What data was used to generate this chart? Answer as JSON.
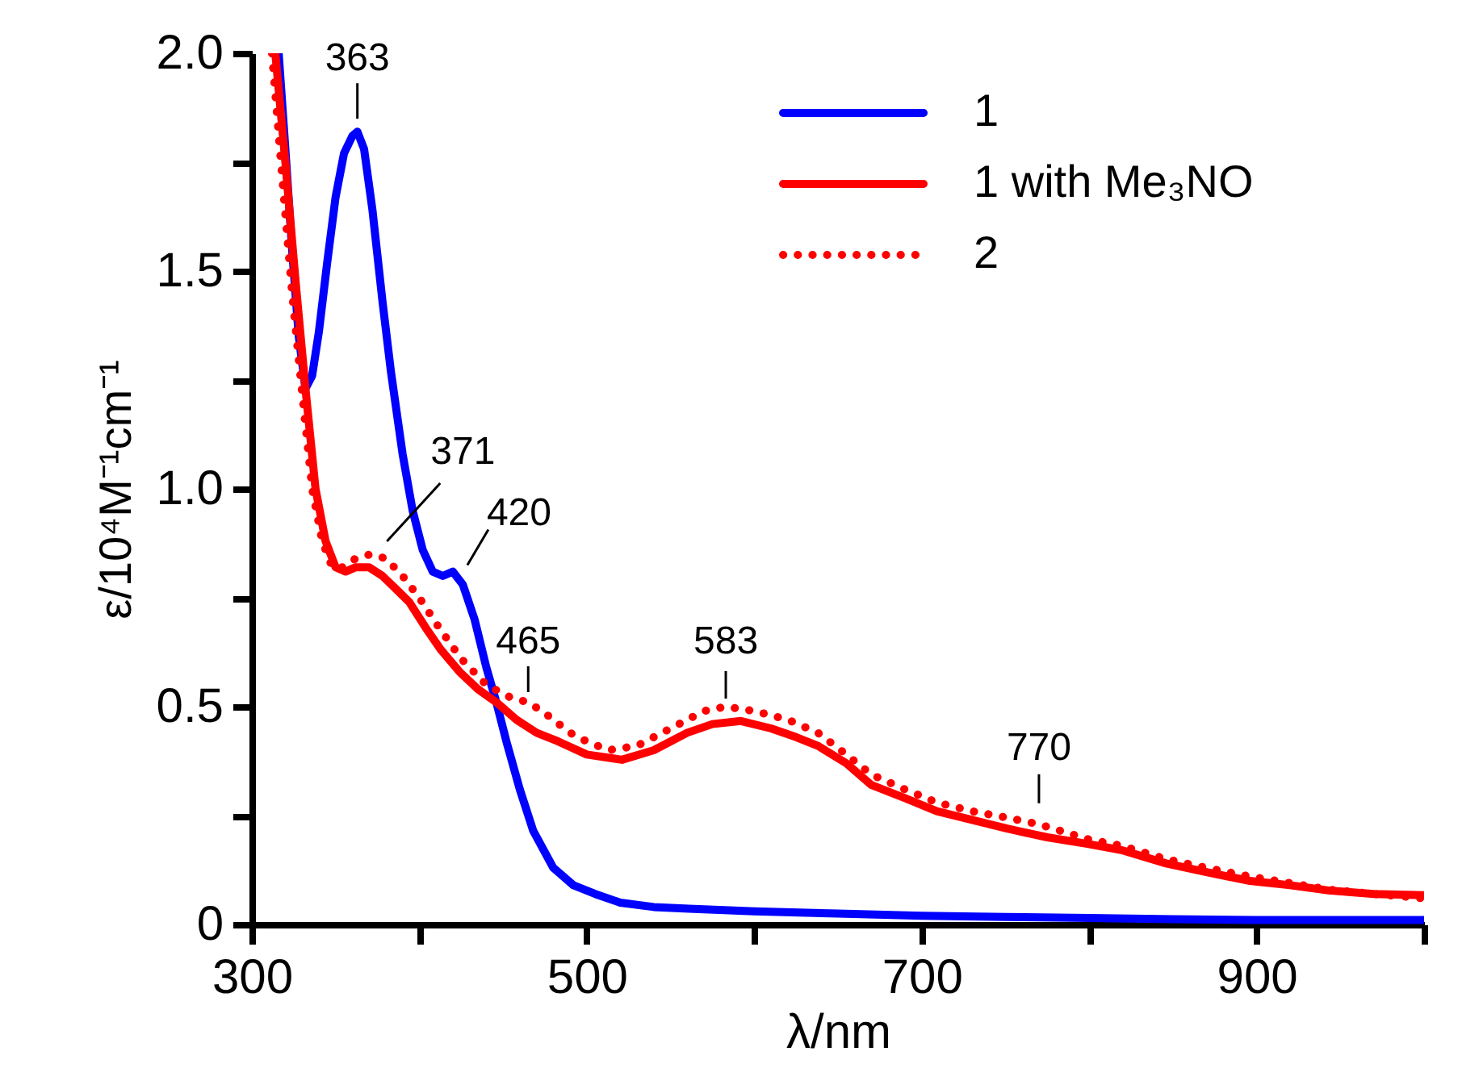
{
  "chart_data": {
    "type": "line",
    "xlabel": "λ/nm",
    "ylabel": "ε/10⁴M⁻¹cm⁻¹",
    "xlim": [
      300,
      1000
    ],
    "ylim": [
      0,
      2.0
    ],
    "xticks": [
      300,
      {
        "value": 400,
        "label": null
      },
      500,
      {
        "value": 600,
        "label": null
      },
      700,
      {
        "value": 800,
        "label": null
      },
      900,
      {
        "value": 1000,
        "label": null
      }
    ],
    "yticks": [
      0,
      {
        "value": 0.25,
        "label": null
      },
      0.5,
      {
        "value": 0.75,
        "label": null
      },
      {
        "value": 1,
        "label": "1.0"
      },
      {
        "value": 1.25,
        "label": null
      },
      1.5,
      {
        "value": 1.75,
        "label": null
      },
      {
        "value": 2,
        "label": "2.0"
      }
    ],
    "grid": false,
    "legend": "top right",
    "marker": "none",
    "series": [
      {
        "name": "1",
        "color": "#0000ff",
        "line_style": "solid",
        "x": [
          316,
          320,
          324,
          328,
          332,
          336,
          340,
          345,
          350,
          355,
          360,
          363,
          367,
          372,
          378,
          383,
          390,
          396,
          402,
          408,
          414,
          420,
          426,
          433,
          440,
          446,
          452,
          460,
          468,
          480,
          492,
          505,
          520,
          540,
          561,
          600,
          650,
          700,
          750,
          800,
          850,
          900,
          950,
          1000
        ],
        "values": [
          2.0,
          1.78,
          1.55,
          1.35,
          1.23,
          1.26,
          1.36,
          1.52,
          1.67,
          1.77,
          1.81,
          1.82,
          1.78,
          1.64,
          1.43,
          1.27,
          1.08,
          0.95,
          0.86,
          0.81,
          0.8,
          0.81,
          0.78,
          0.7,
          0.59,
          0.51,
          0.42,
          0.31,
          0.215,
          0.13,
          0.09,
          0.07,
          0.05,
          0.04,
          0.036,
          0.03,
          0.025,
          0.02,
          0.017,
          0.015,
          0.012,
          0.01,
          0.01,
          0.01
        ]
      },
      {
        "name": "1 with Me₃NO",
        "color": "#ff0000",
        "line_style": "solid",
        "x": [
          314,
          320,
          326,
          332,
          338,
          344,
          350,
          356,
          362,
          370,
          378,
          386,
          394,
          404,
          413,
          424,
          435,
          446,
          458,
          470,
          483,
          500,
          521,
          540,
          560,
          575,
          592,
          610,
          625,
          638,
          655,
          670,
          690,
          709,
          730,
          751,
          775,
          799,
          820,
          846,
          870,
          896,
          920,
          943,
          970,
          1000
        ],
        "values": [
          2.0,
          1.75,
          1.48,
          1.23,
          1.0,
          0.88,
          0.82,
          0.81,
          0.82,
          0.82,
          0.8,
          0.77,
          0.74,
          0.68,
          0.63,
          0.58,
          0.54,
          0.51,
          0.47,
          0.44,
          0.42,
          0.39,
          0.378,
          0.4,
          0.44,
          0.46,
          0.467,
          0.45,
          0.43,
          0.41,
          0.37,
          0.32,
          0.29,
          0.26,
          0.24,
          0.22,
          0.2,
          0.185,
          0.17,
          0.14,
          0.12,
          0.1,
          0.09,
          0.078,
          0.07,
          0.067
        ]
      },
      {
        "name": "2",
        "color": "#ff0000",
        "line_style": "dotted",
        "x": [
          312,
          318,
          324,
          330,
          336,
          342,
          348,
          354,
          362,
          371,
          380,
          390,
          400,
          412,
          425,
          440,
          455,
          465,
          475,
          490,
          500,
          513,
          530,
          550,
          570,
          583,
          600,
          620,
          638,
          655,
          670,
          690,
          709,
          730,
          751,
          770,
          799,
          820,
          846,
          870,
          896,
          920,
          943,
          970,
          1000
        ],
        "values": [
          2.0,
          1.72,
          1.45,
          1.22,
          1.0,
          0.88,
          0.82,
          0.82,
          0.84,
          0.85,
          0.84,
          0.8,
          0.75,
          0.68,
          0.61,
          0.55,
          0.52,
          0.51,
          0.485,
          0.44,
          0.42,
          0.4,
          0.41,
          0.45,
          0.49,
          0.5,
          0.49,
          0.47,
          0.44,
          0.39,
          0.344,
          0.31,
          0.28,
          0.26,
          0.245,
          0.23,
          0.196,
          0.18,
          0.15,
          0.13,
          0.11,
          0.095,
          0.08,
          0.07,
          0.06
        ]
      }
    ],
    "annotations": [
      {
        "text": "363",
        "x": 363,
        "y": 1.82
      },
      {
        "text": "371",
        "x": 371,
        "y": 0.85
      },
      {
        "text": "420",
        "x": 420,
        "y": 0.81
      },
      {
        "text": "465",
        "x": 465,
        "y": 0.5
      },
      {
        "text": "583",
        "x": 583,
        "y": 0.5
      },
      {
        "text": "770",
        "x": 770,
        "y": 0.23
      }
    ]
  }
}
